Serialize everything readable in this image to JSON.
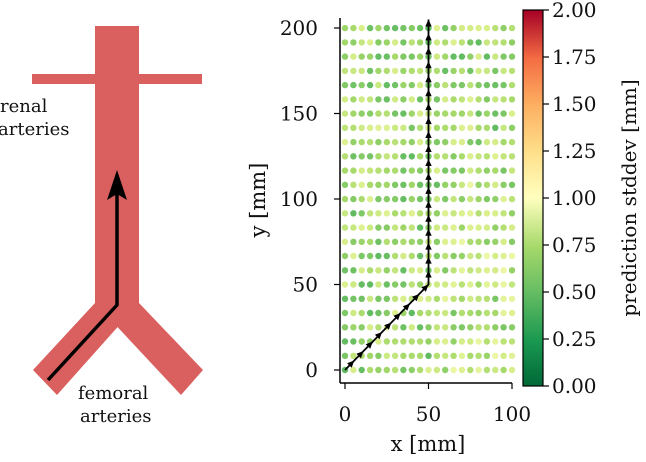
{
  "diagram": {
    "renal_label_line1": "renal",
    "renal_label_line2": "arteries",
    "femoral_label_line1": "femoral",
    "femoral_label_line2": "arteries",
    "vessel_color": "#d9605f",
    "arrow_color": "#000000"
  },
  "chart_data": {
    "type": "scatter",
    "title": "",
    "xlabel": "x [mm]",
    "ylabel": "y [mm]",
    "xlim": [
      0,
      100
    ],
    "ylim": [
      0,
      200
    ],
    "x_ticks": [
      0,
      50,
      100
    ],
    "y_ticks": [
      0,
      50,
      100,
      150,
      200
    ],
    "grid": {
      "x_start": 0,
      "x_step": 5,
      "x_count": 21,
      "y_start": 0,
      "y_step": 8.33,
      "y_count": 25
    },
    "value_label": "prediction stddev",
    "typical_stddev_mm": 0.45,
    "pointer_path": [
      [
        0,
        0
      ],
      [
        50,
        50
      ],
      [
        50,
        205
      ]
    ],
    "colorbar": {
      "label": "prediction stddev [mm]",
      "min": 0,
      "max": 2,
      "ticks": [
        "0.00",
        "0.25",
        "0.50",
        "0.75",
        "1.00",
        "1.25",
        "1.50",
        "1.75",
        "2.00"
      ],
      "colormap": [
        "#1a9850",
        "#66bd63",
        "#a6d96a",
        "#d9ef8b",
        "#ffffbf",
        "#fee08b",
        "#fdae61",
        "#f46d43",
        "#d73027",
        "#a50026"
      ]
    },
    "legend": "none"
  }
}
